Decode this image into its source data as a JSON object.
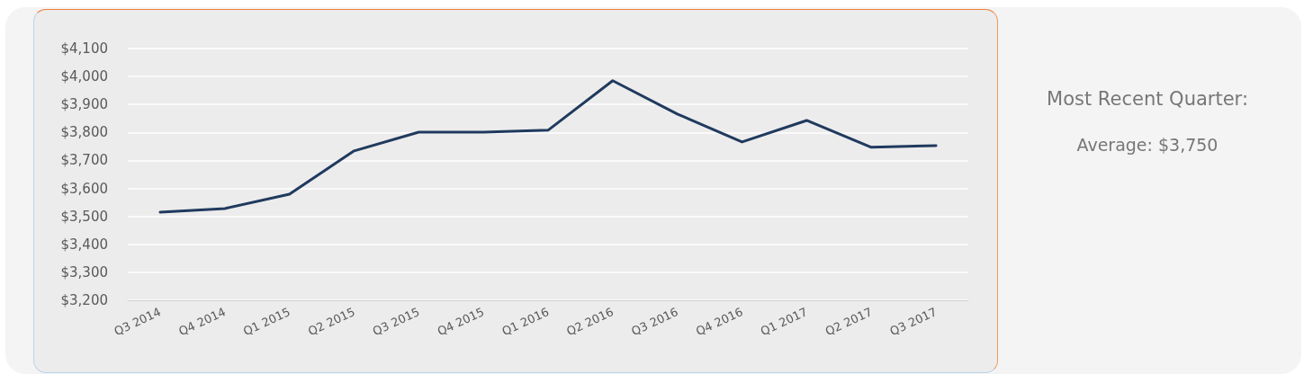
{
  "chart_data": {
    "type": "line",
    "categories": [
      "Q3 2014",
      "Q4 2014",
      "Q1 2015",
      "Q2 2015",
      "Q3 2015",
      "Q4 2015",
      "Q1 2016",
      "Q2 2016",
      "Q3 2016",
      "Q4 2016",
      "Q1 2017",
      "Q2 2017",
      "Q3 2017"
    ],
    "series": [
      {
        "color": "#203a5e",
        "values": [
          3515,
          3528,
          3579,
          3734,
          3801,
          3801,
          3808,
          3985,
          3866,
          3766,
          3843,
          3747,
          3753
        ]
      }
    ],
    "ylim": [
      3200,
      4100
    ],
    "yticks": [
      {
        "value": 3200,
        "label": "$3,200"
      },
      {
        "value": 3300,
        "label": "$3,300"
      },
      {
        "value": 3400,
        "label": "$3,400"
      },
      {
        "value": 3500,
        "label": "$3,500"
      },
      {
        "value": 3600,
        "label": "$3,600"
      },
      {
        "value": 3700,
        "label": "$3,700"
      },
      {
        "value": 3800,
        "label": "$3,800"
      },
      {
        "value": 3900,
        "label": "$3,900"
      },
      {
        "value": 4000,
        "label": "$4,000"
      },
      {
        "value": 4100,
        "label": "$4,100"
      }
    ],
    "grid": "y",
    "marker": "none",
    "line_style": "solid",
    "annotations": [
      "Most Recent Quarter:",
      "Average: $3,750"
    ]
  }
}
